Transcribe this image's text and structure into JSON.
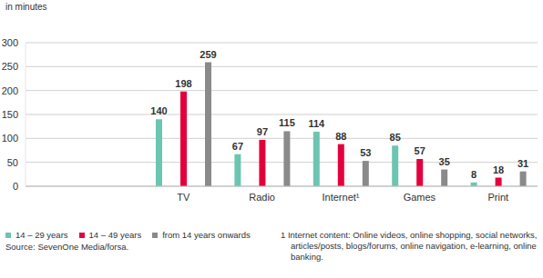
{
  "chart_data": {
    "type": "bar",
    "y_label": "in minutes",
    "categories": [
      "TV",
      "Radio",
      "Internet¹",
      "Games",
      "Print"
    ],
    "series": [
      {
        "name": "14 – 29 years",
        "color": "#6cc5b0",
        "values": [
          140,
          67,
          114,
          85,
          8
        ]
      },
      {
        "name": "14 – 49 years",
        "color": "#e4003b",
        "values": [
          198,
          97,
          88,
          57,
          18
        ]
      },
      {
        "name": "from 14 years onwards",
        "color": "#8a8a8a",
        "values": [
          259,
          115,
          53,
          35,
          31
        ]
      }
    ],
    "ylim": [
      0,
      300
    ],
    "yticks": [
      0,
      50,
      100,
      150,
      200,
      250,
      300
    ],
    "grid": true,
    "data_labels": true,
    "legend": "bottom",
    "annotations": [
      "Source: SevenOne Media/forsa.",
      "1 Internet content: Online videos, online shopping, social networks, articles/posts, blogs/forums, online navigation, e-learning, online banking."
    ]
  }
}
